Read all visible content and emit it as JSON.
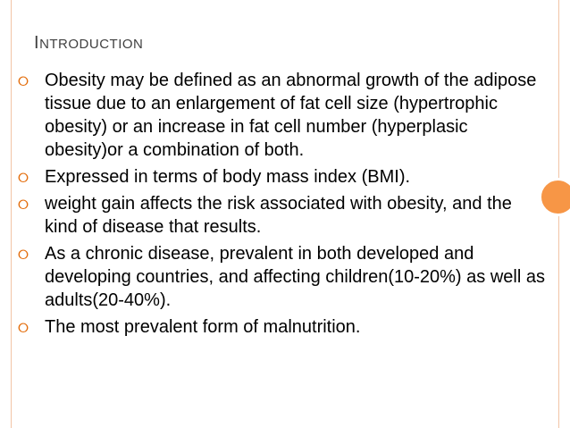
{
  "slide": {
    "title_initial": "I",
    "title_rest": "NTRODUCTION",
    "bullets": [
      "Obesity may be defined as an abnormal growth of the adipose tissue due to an enlargement of fat cell size (hypertrophic obesity) or an increase in fat cell number (hyperplasic obesity)or a combination of both.",
      "Expressed in terms of body mass index (BMI).",
      "weight gain affects the risk associated with obesity, and the kind of disease that results.",
      "As a chronic disease, prevalent in both developed and developing countries, and affecting children(10-20%) as well as adults(20-40%).",
      "The most prevalent form of malnutrition."
    ]
  },
  "icons": {
    "bullet": "ring-bullet-icon",
    "bullet_glyph": "⭘",
    "decoration": "orange-circle"
  },
  "colors": {
    "text": "#000000",
    "title": "#404040",
    "bullet": "#e36c0a",
    "accent_circle": "#f79646",
    "frame_rule": "#f2c4a6"
  }
}
